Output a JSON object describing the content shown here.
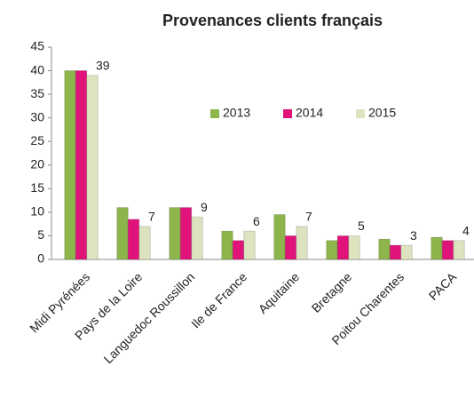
{
  "chart_data": {
    "type": "bar",
    "title": "Provenances clients français",
    "categories": [
      "Midi Pyrénées",
      "Pays de la Loire",
      "Languedoc Roussillon",
      "Ile de France",
      "Aquitaine",
      "Bretagne",
      "Poitou Charentes",
      "PACA"
    ],
    "series": [
      {
        "name": "2013",
        "color": "#8db54b",
        "values": [
          40,
          11,
          11,
          6,
          9.5,
          4,
          4.3,
          4.7
        ]
      },
      {
        "name": "2014",
        "color": "#e0137a",
        "values": [
          40,
          8.5,
          11,
          4,
          5,
          5,
          3,
          4
        ]
      },
      {
        "name": "2015",
        "color": "#dde3bf",
        "values": [
          39,
          7,
          9,
          6,
          7,
          5,
          3,
          4
        ],
        "data_labels": true
      }
    ],
    "ylim": [
      0,
      45
    ],
    "yticks": [
      0,
      5,
      10,
      15,
      20,
      25,
      30,
      35,
      40,
      45
    ],
    "grid": false,
    "legend": "top"
  }
}
